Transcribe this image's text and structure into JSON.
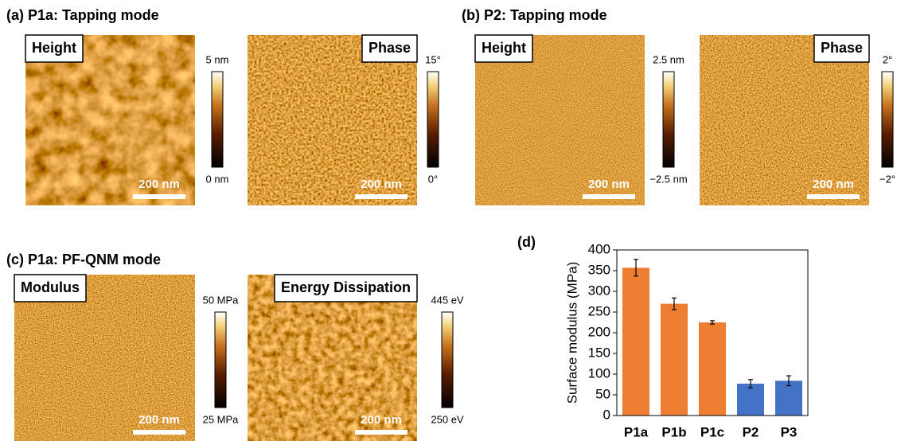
{
  "panels": [
    {
      "title": "(a) P1a: Tapping mode",
      "images": [
        {
          "label": "Height",
          "scale_bar": "200 nm",
          "colorbar_top": "5 nm",
          "colorbar_bottom": "0 nm"
        },
        {
          "label": "Phase",
          "scale_bar": "200 nm",
          "colorbar_top": "15°",
          "colorbar_bottom": "0°"
        }
      ]
    },
    {
      "title": "(b) P2: Tapping mode",
      "images": [
        {
          "label": "Height",
          "scale_bar": "200 nm",
          "colorbar_top": "2.5 nm",
          "colorbar_bottom": "−2.5 nm"
        },
        {
          "label": "Phase",
          "scale_bar": "200 nm",
          "colorbar_top": "2°",
          "colorbar_bottom": "−2°"
        }
      ]
    },
    {
      "title": "(c) P1a: PF-QNM mode",
      "images": [
        {
          "label": "Modulus",
          "scale_bar": "200 nm",
          "colorbar_top": "50 MPa",
          "colorbar_bottom": "25 MPa"
        },
        {
          "label": "Energy Dissipation",
          "scale_bar": "200 nm",
          "colorbar_top": "445 eV",
          "colorbar_bottom": "250 eV"
        }
      ]
    }
  ],
  "chart_data": {
    "type": "bar",
    "panel_label": "(d)",
    "y_label": "Surface modulus (MPa)",
    "categories": [
      "P1a",
      "P1b",
      "P1c",
      "P2",
      "P3"
    ],
    "values": [
      357,
      270,
      225,
      77,
      84
    ],
    "errors": [
      20,
      14,
      4,
      10,
      12
    ],
    "colors": [
      "#ed7d31",
      "#ed7d31",
      "#ed7d31",
      "#4472c4",
      "#4472c4"
    ],
    "ylim": [
      0,
      400
    ],
    "yticks": [
      0,
      50,
      100,
      150,
      200,
      250,
      300,
      350,
      400
    ]
  }
}
